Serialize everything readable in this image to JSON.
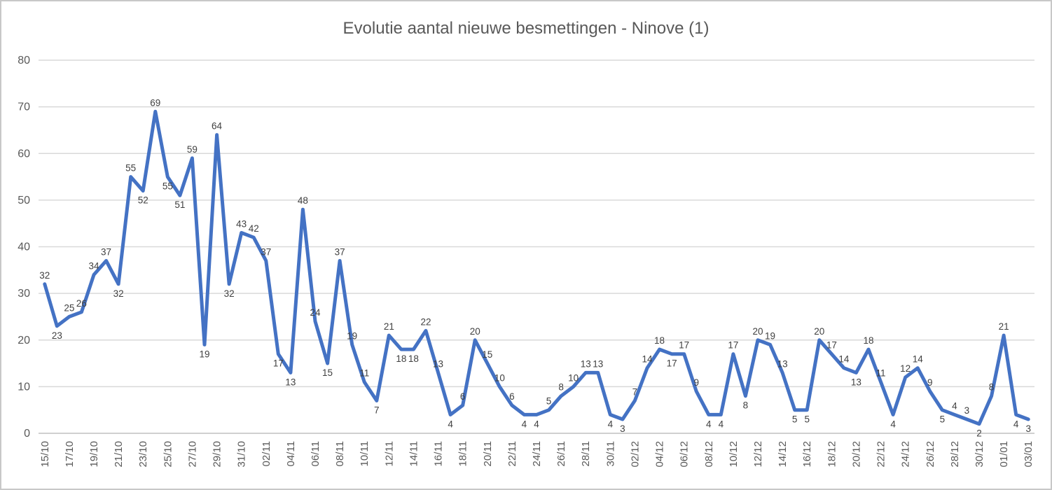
{
  "window": {
    "background": "#ffffff",
    "border_color": "#c8c8c8"
  },
  "chart_data": {
    "type": "line",
    "title": "Evolutie aantal nieuwe besmettingen - Ninove (1)",
    "title_color": "#595959",
    "x_tick_labels": [
      "15/10",
      "17/10",
      "19/10",
      "21/10",
      "23/10",
      "25/10",
      "27/10",
      "29/10",
      "31/10",
      "02/11",
      "04/11",
      "06/11",
      "08/11",
      "10/11",
      "12/11",
      "14/11",
      "16/11",
      "18/11",
      "20/11",
      "22/11",
      "24/11",
      "26/11",
      "28/11",
      "30/11",
      "02/12",
      "04/12",
      "06/12",
      "08/12",
      "10/12",
      "12/12",
      "14/12",
      "16/12",
      "18/12",
      "20/12",
      "22/12",
      "24/12",
      "26/12",
      "28/12",
      "30/12",
      "01/01",
      "03/01"
    ],
    "values": [
      32,
      23,
      25,
      26,
      34,
      37,
      32,
      55,
      52,
      69,
      55,
      51,
      59,
      19,
      64,
      32,
      43,
      42,
      37,
      17,
      13,
      48,
      24,
      15,
      37,
      19,
      11,
      7,
      21,
      18,
      18,
      22,
      13,
      4,
      6,
      20,
      15,
      10,
      6,
      4,
      4,
      5,
      8,
      10,
      13,
      13,
      4,
      3,
      7,
      14,
      18,
      17,
      17,
      9,
      4,
      4,
      17,
      8,
      20,
      19,
      13,
      5,
      5,
      20,
      17,
      14,
      13,
      18,
      11,
      4,
      12,
      14,
      9,
      5,
      4,
      3,
      2,
      8,
      21,
      4,
      3
    ],
    "data_labels_visible": true,
    "y_ticks": [
      0,
      10,
      20,
      30,
      40,
      50,
      60,
      70,
      80
    ],
    "ylim": [
      0,
      80
    ],
    "grid": true,
    "legend_position": "none",
    "line_color": "#4472C4",
    "data_label_color": "#404040",
    "axis_label_color": "#595959",
    "gridline_color": "#d9d9d9",
    "axis_line_color": "#bfbfbf"
  }
}
